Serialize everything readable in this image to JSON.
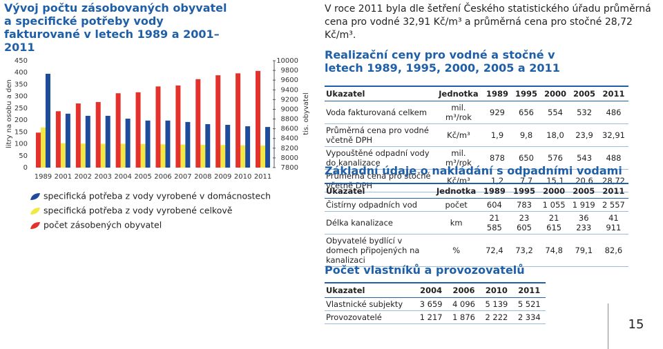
{
  "chart_data": {
    "type": "bar",
    "title": "Vývoj počtu zásobovaných obyvatel a specifické potřeby vody fakturované v letech 1989 a 2001–2011",
    "y_label": "litry na osobu a den",
    "y2_label": "tis. obyvatel",
    "categories": [
      "1989",
      "2001",
      "2002",
      "2003",
      "2004",
      "2005",
      "2006",
      "2007",
      "2008",
      "2009",
      "2010",
      "2011"
    ],
    "series": [
      {
        "name": "specifická potřeba z vody vyrobené v domácnostech",
        "color": "#1e4c9a",
        "values": [
          395,
          227,
          218,
          218,
          206,
          198,
          198,
          192,
          183,
          180,
          174,
          171
        ]
      },
      {
        "name": "specifická potřeba z vody vyrobené celkově",
        "color": "#f3e745",
        "values": [
          169,
          103,
          101,
          100,
          100,
          99,
          98,
          97,
          96,
          95,
          94,
          93
        ]
      },
      {
        "name": "počet zásobených obyvatel",
        "color": "#e4312b",
        "axis": "y2",
        "values": [
          8520,
          8960,
          9120,
          9150,
          9330,
          9350,
          9470,
          9490,
          9620,
          9700,
          9740,
          9790
        ]
      }
    ],
    "ylim": [
      0,
      450
    ],
    "yticks": [
      0,
      50,
      100,
      150,
      200,
      250,
      300,
      350,
      400,
      450
    ],
    "y2lim": [
      7800,
      10000
    ],
    "y2ticks": [
      7800,
      8000,
      8200,
      8400,
      8600,
      8800,
      9000,
      9200,
      9400,
      9600,
      9800,
      10000
    ],
    "grid": false
  },
  "intro": "V roce 2011 byla dle šetření Českého statistického úřadu průměrná cena pro vodné 32,91 Kč/m³ a průměrná cena pro stočné 28,72 Kč/m³.",
  "tables": [
    {
      "title": "Realizační ceny pro vodné a stočné v letech 1989, 1995, 2000, 2005 a 2011",
      "header": [
        "Ukazatel",
        "Jednotka",
        "1989",
        "1995",
        "2000",
        "2005",
        "2011"
      ],
      "rows": [
        [
          "Voda fakturovaná celkem",
          "mil. m³/rok",
          "929",
          "656",
          "554",
          "532",
          "486"
        ],
        [
          "Průměrná cena pro vodné včetně DPH",
          "Kč/m³",
          "1,9",
          "9,8",
          "18,0",
          "23,9",
          "32,91"
        ],
        [
          "Vypouštěné odpadní vody do kanalizace",
          "mil. m³/rok",
          "878",
          "650",
          "576",
          "543",
          "488"
        ],
        [
          "Průměrná cena pro stočné včetně DPH",
          "Kč/m³",
          "1,2",
          "7,7",
          "15,1",
          "20,6",
          "28,72"
        ]
      ]
    },
    {
      "title": "Základní údaje o nakládání s odpadními vodami",
      "header": [
        "Ukazatel",
        "Jednotka",
        "1989",
        "1995",
        "2000",
        "2005",
        "2011"
      ],
      "rows": [
        [
          "Čistírny odpadních vod",
          "počet",
          "604",
          "783",
          "1 055",
          "1 919",
          "2 557"
        ],
        [
          "Délka kanalizace",
          "km",
          "21 585",
          "23 605",
          "21 615",
          "36 233",
          "41 911"
        ],
        [
          "Obyvatelé bydlící v domech připojených na kanalizaci",
          "%",
          "72,4",
          "73,2",
          "74,8",
          "79,1",
          "82,6"
        ]
      ]
    },
    {
      "title": "Počet vlastníků a provozovatelů",
      "header": [
        "Ukazatel",
        "2004",
        "2006",
        "2010",
        "2011"
      ],
      "rows": [
        [
          "Vlastnické subjekty",
          "3 659",
          "4 096",
          "5 139",
          "5 521"
        ],
        [
          "Provozovatelé",
          "1 217",
          "1 876",
          "2 222",
          "2 334"
        ]
      ]
    }
  ],
  "page_number": "15"
}
